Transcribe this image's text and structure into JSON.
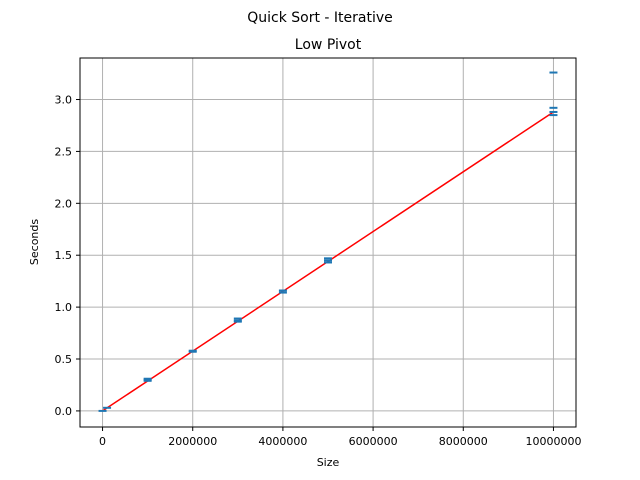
{
  "chart_data": {
    "type": "scatter",
    "suptitle": "Quick Sort - Iterative",
    "title": "Low Pivot",
    "xlabel": "Size",
    "ylabel": "Seconds",
    "xlim": [
      -500000,
      10500000
    ],
    "ylim": [
      -0.155,
      3.4
    ],
    "x_ticks": [
      {
        "value": 0,
        "label": "0"
      },
      {
        "value": 2000000,
        "label": "2000000"
      },
      {
        "value": 4000000,
        "label": "4000000"
      },
      {
        "value": 6000000,
        "label": "6000000"
      },
      {
        "value": 8000000,
        "label": "8000000"
      },
      {
        "value": 10000000,
        "label": "10000000"
      }
    ],
    "y_ticks": [
      {
        "value": 0.0,
        "label": "0.0"
      },
      {
        "value": 0.5,
        "label": "0.5"
      },
      {
        "value": 1.0,
        "label": "1.0"
      },
      {
        "value": 1.5,
        "label": "1.5"
      },
      {
        "value": 2.0,
        "label": "2.0"
      },
      {
        "value": 2.5,
        "label": "2.5"
      },
      {
        "value": 3.0,
        "label": "3.0"
      }
    ],
    "grid": true,
    "series": [
      {
        "marker_color": "#1f77b4",
        "x": [
          0,
          100000,
          1000000,
          1000000,
          1000000,
          2000000,
          2000000,
          3000000,
          3000000,
          3000000,
          4000000,
          4000000,
          5000000,
          5000000,
          5000000,
          10000000,
          10000000,
          10000000,
          10000000
        ],
        "y": [
          0.0,
          0.03,
          0.29,
          0.3,
          0.31,
          0.57,
          0.58,
          0.86,
          0.87,
          0.89,
          1.14,
          1.16,
          1.43,
          1.45,
          1.47,
          2.85,
          2.88,
          2.92,
          3.26
        ]
      }
    ],
    "fit_line": {
      "color": "#ff0000",
      "x": [
        0,
        10000000
      ],
      "y": [
        0.0,
        2.88
      ]
    }
  }
}
